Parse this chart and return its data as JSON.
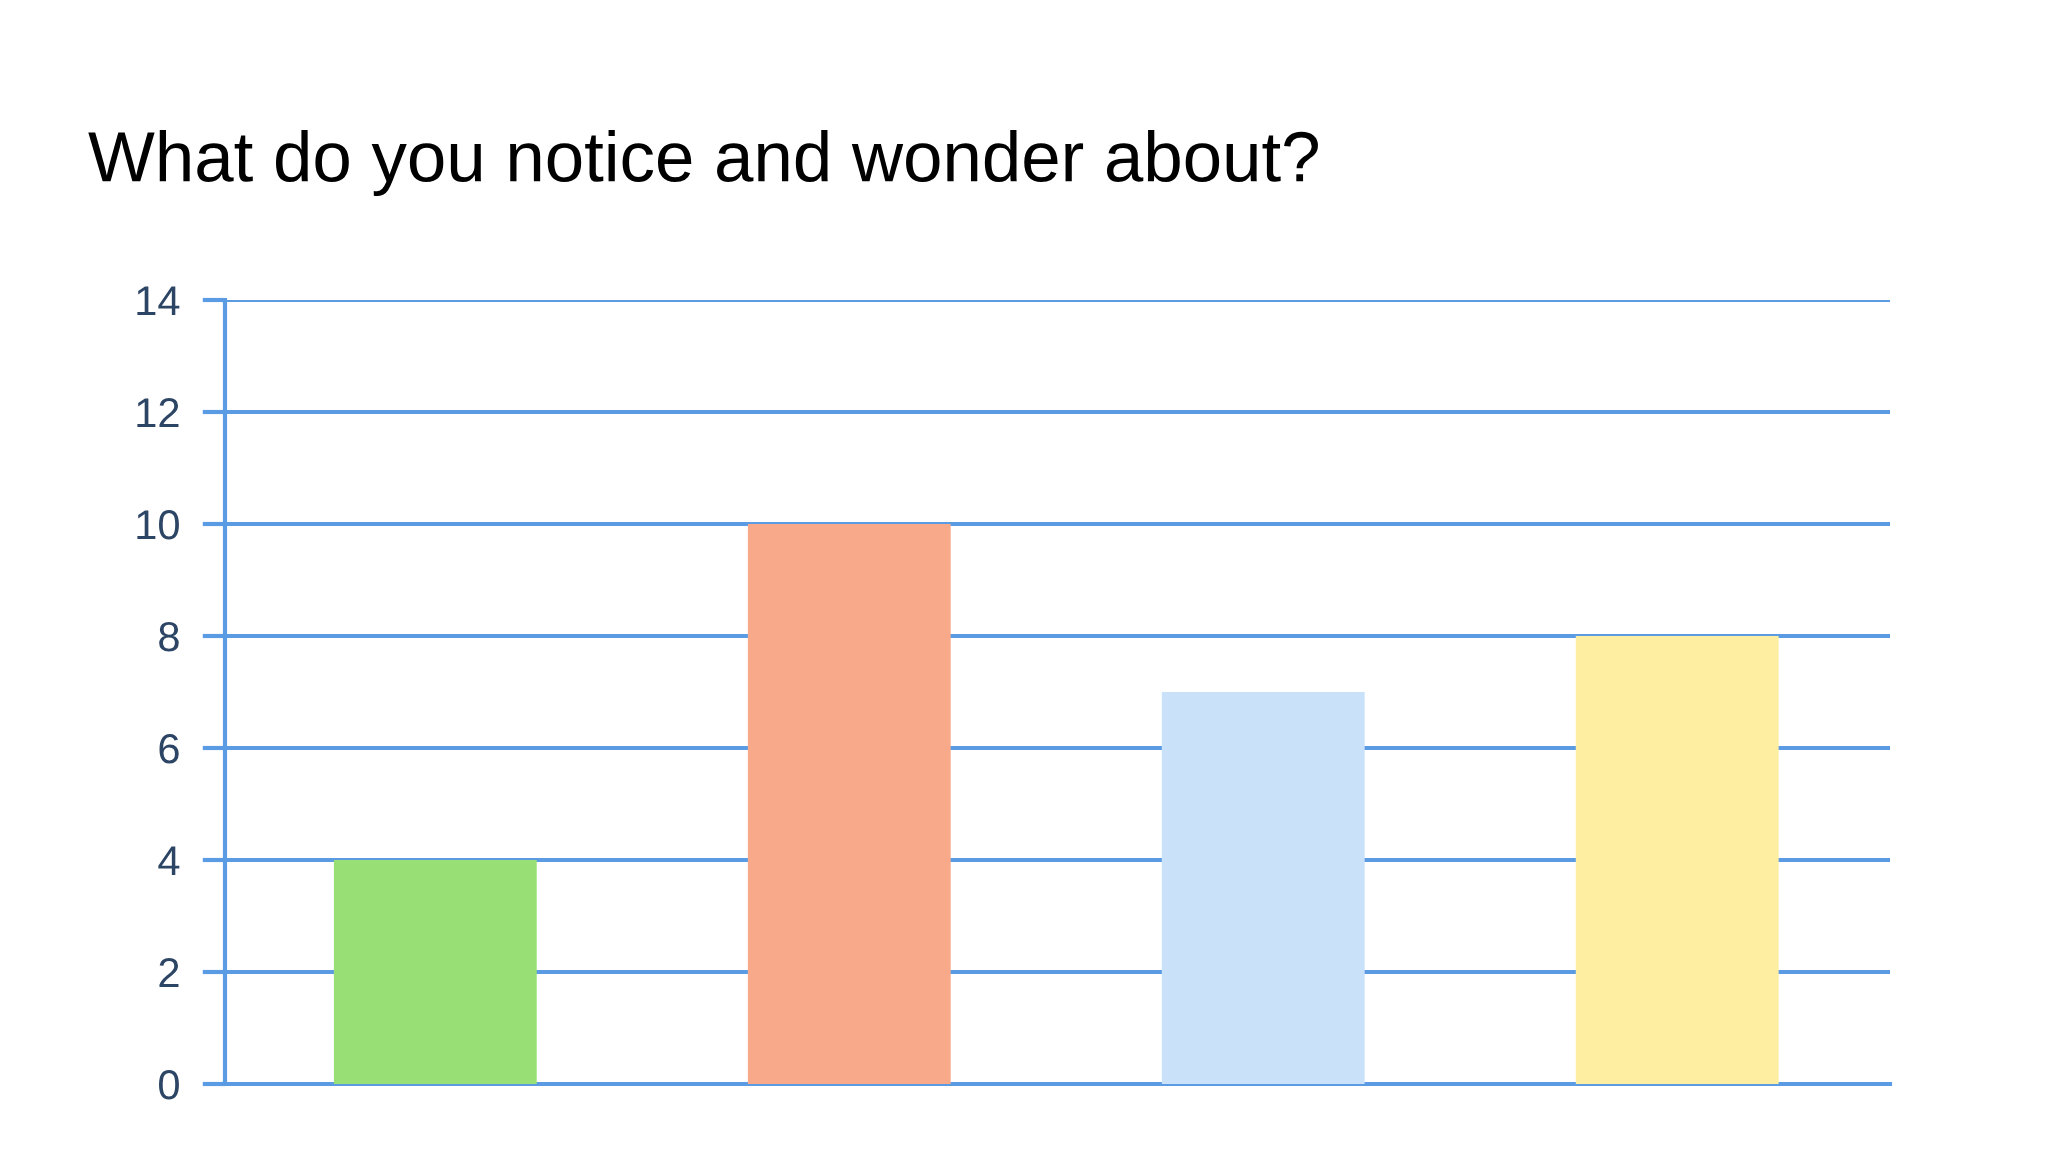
{
  "chart_data": {
    "type": "bar",
    "title": "What do you notice and wonder about?",
    "categories": [
      null,
      null,
      null,
      null
    ],
    "values": [
      4,
      10,
      7,
      8
    ],
    "colors": [
      "#98e075",
      "#f8a98a",
      "#c9e2fa",
      "#fdeea2"
    ],
    "ylim": [
      0,
      14
    ],
    "yticks": [
      0,
      2,
      4,
      6,
      8,
      10,
      12,
      14
    ],
    "grid": "y",
    "tick_labels": "y"
  }
}
